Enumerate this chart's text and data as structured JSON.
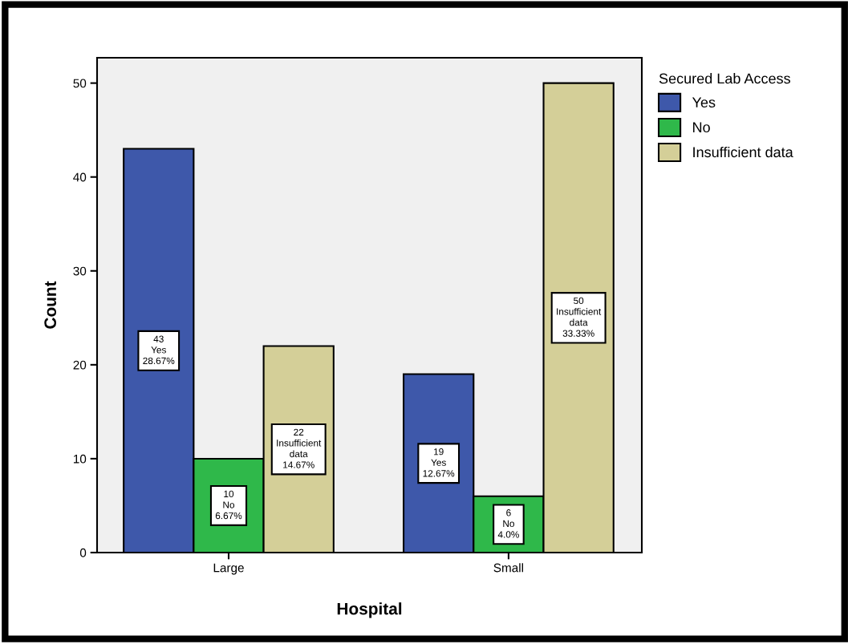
{
  "chart_data": {
    "type": "bar",
    "xlabel": "Hospital",
    "ylabel": "Count",
    "legend_title": "Secured Lab Access",
    "categories": [
      "Large",
      "Small"
    ],
    "series": [
      {
        "name": "Yes",
        "color": "#3e58aa",
        "values": [
          43,
          19
        ],
        "value_labels": [
          "43\nYes\n28.67%",
          "19\nYes\n12.67%"
        ]
      },
      {
        "name": "No",
        "color": "#2fb84a",
        "values": [
          10,
          6
        ],
        "value_labels": [
          "10\nNo\n6.67%",
          "6\nNo\n4.0%"
        ]
      },
      {
        "name": "Insufficient data",
        "color": "#d4cf98",
        "values": [
          22,
          50
        ],
        "value_labels": [
          "22\nInsufficient\ndata\n14.67%",
          "50\nInsufficient\ndata\n33.33%"
        ]
      }
    ],
    "ylim": [
      0,
      52.7
    ],
    "yticks": [
      0,
      10,
      20,
      30,
      40,
      50
    ],
    "grid": false,
    "legend": "top right"
  }
}
